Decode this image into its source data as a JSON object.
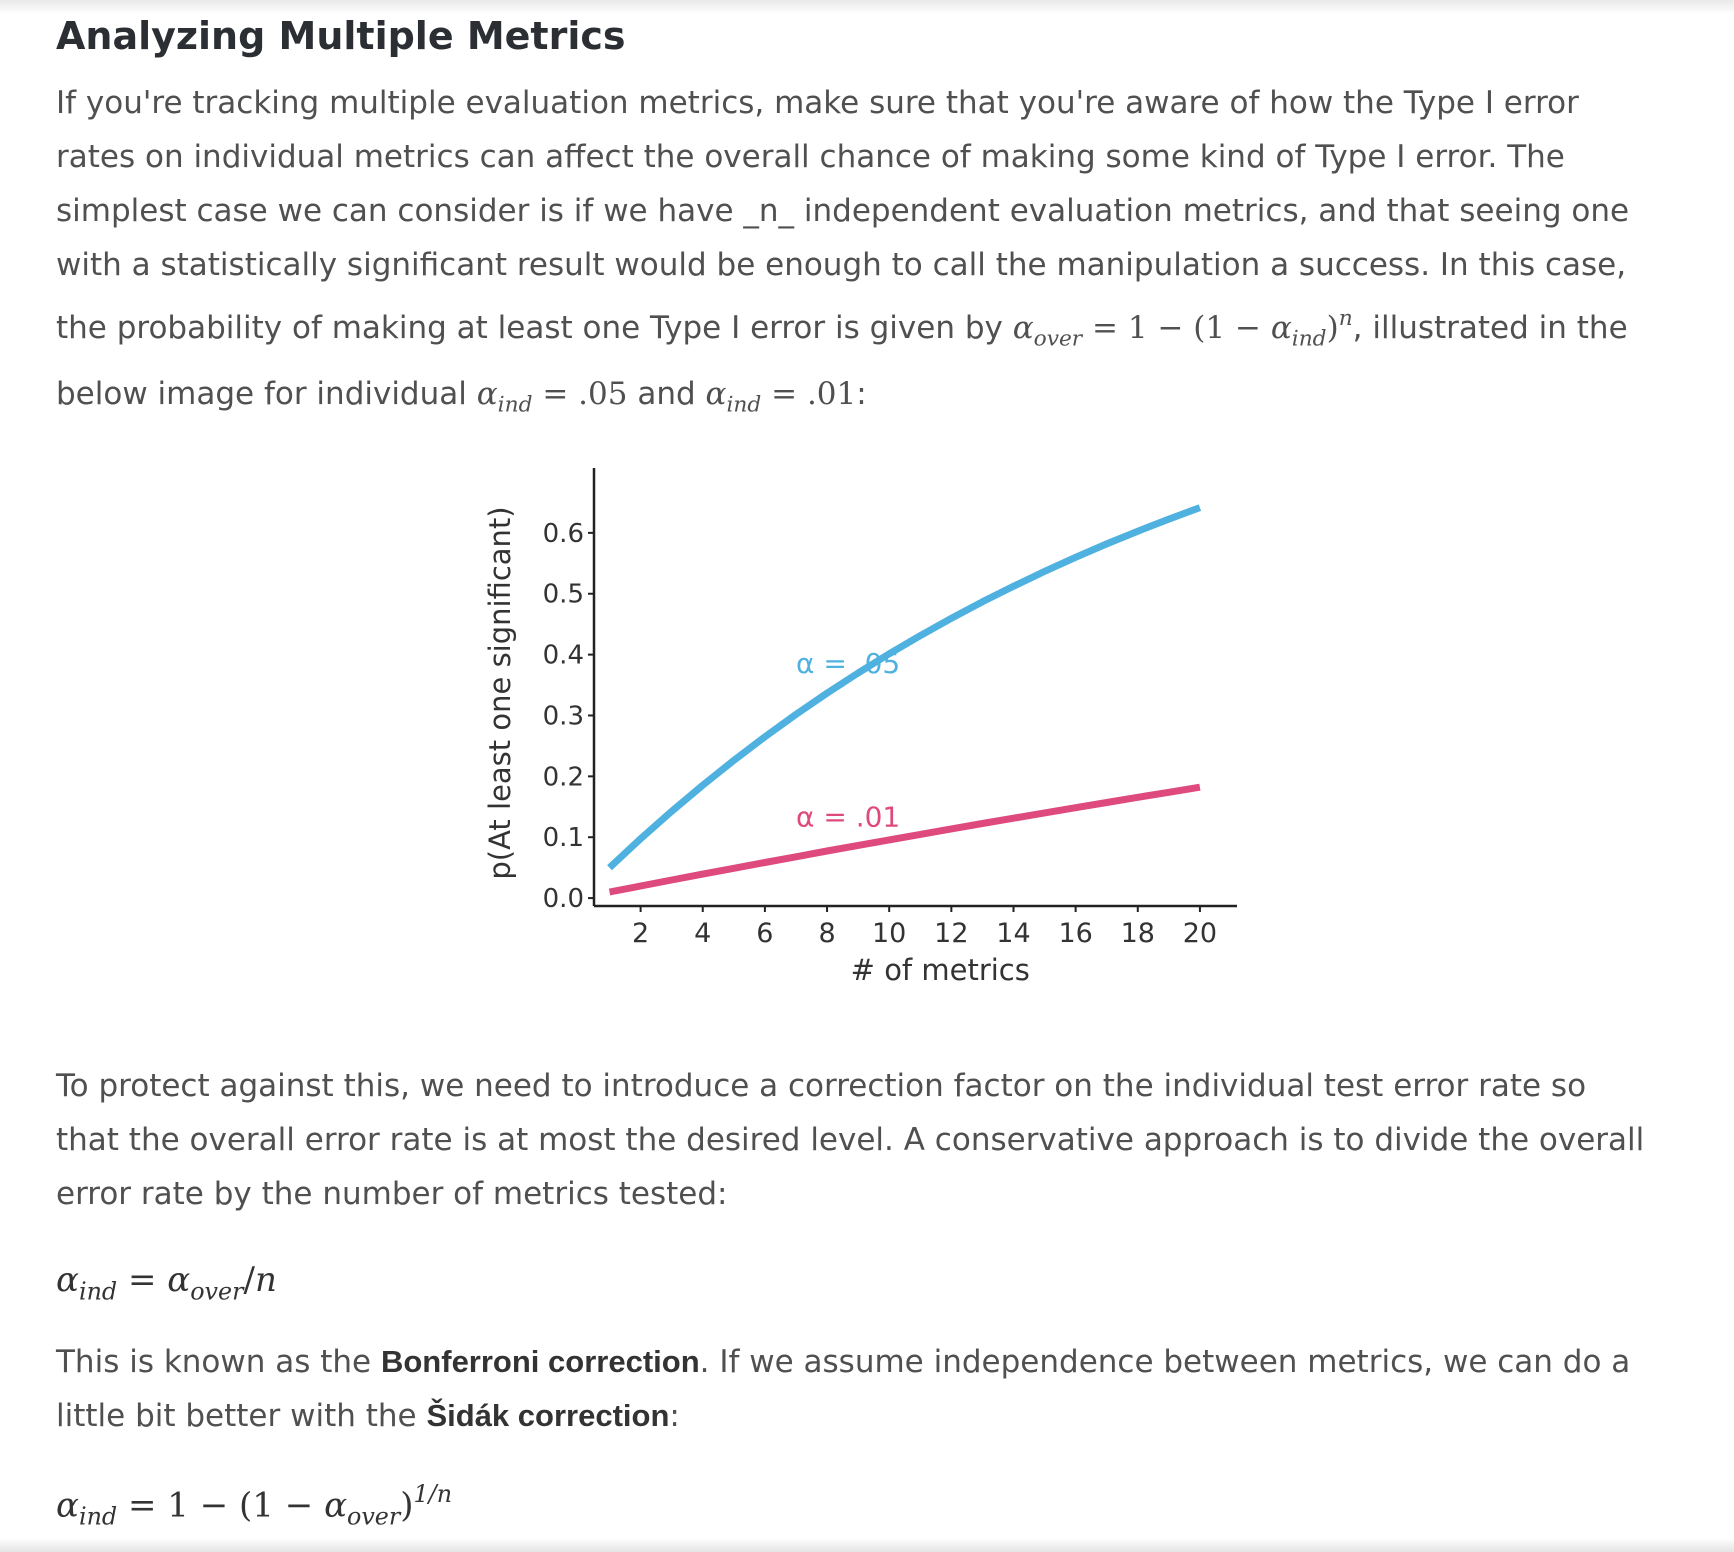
{
  "article": {
    "heading": "Analyzing Multiple Metrics",
    "p1": {
      "text1": "If you're tracking multiple evaluation metrics, make sure that you're aware of how the Type I error rates on individual metrics can affect the overall chance of making some kind of Type I error. The simplest case we can consider is if we have _n_ independent evaluation metrics, and that seeing one with a statistically significant result would be enough to call the manipulation a success. In this case, the probability of making at least one Type I error is given by ",
      "text2": ", illustrated in the below image for individual ",
      "text3": " and ",
      "text4": ":"
    },
    "p2": "To protect against this, we need to introduce a correction factor on the individual test error rate so that the overall error rate is at most the desired level. A conservative approach is to divide the overall error rate by the number of metrics tested:",
    "p3": {
      "text1": "This is known as the ",
      "bold1": "Bonferroni correction",
      "text2": ". If we assume independence between metrics, we can do a little bit better with the ",
      "bold2": "Šidák correction",
      "text3": ":"
    }
  },
  "math": {
    "alpha": "α",
    "over": "over",
    "ind": "ind",
    "n": "n",
    "eq_sign": "=",
    "one": "1",
    "minus": "−",
    "open": "(",
    "close": ")",
    "val05": ".05",
    "val01": ".01",
    "slash": "/",
    "exp": "1/n"
  },
  "chart_data": {
    "type": "line",
    "xlabel": "# of metrics",
    "ylabel": "p(At least one significant)",
    "xlim": [
      0.5,
      21
    ],
    "ylim": [
      -0.013,
      0.7
    ],
    "xticks": [
      2,
      4,
      6,
      8,
      10,
      12,
      14,
      16,
      18,
      20
    ],
    "xtick_labels": [
      "2",
      "4",
      "6",
      "8",
      "10",
      "12",
      "14",
      "16",
      "18",
      "20"
    ],
    "yticks": [
      0.0,
      0.1,
      0.2,
      0.3,
      0.4,
      0.5,
      0.6
    ],
    "ytick_labels": [
      "0.0",
      "0.1",
      "0.2",
      "0.3",
      "0.4",
      "0.5",
      "0.6"
    ],
    "x": [
      1,
      2,
      3,
      4,
      5,
      6,
      7,
      8,
      9,
      10,
      11,
      12,
      13,
      14,
      15,
      16,
      17,
      18,
      19,
      20
    ],
    "series": [
      {
        "name": "α = .05",
        "color": "#4fb1e0",
        "values": [
          0.05,
          0.0975,
          0.1426,
          0.1855,
          0.2262,
          0.2649,
          0.3017,
          0.3366,
          0.3698,
          0.4013,
          0.4312,
          0.4596,
          0.4867,
          0.5123,
          0.5367,
          0.5599,
          0.5819,
          0.6028,
          0.6226,
          0.6415
        ]
      },
      {
        "name": "α = .01",
        "color": "#de4a7e",
        "values": [
          0.01,
          0.0199,
          0.0297,
          0.0394,
          0.049,
          0.0585,
          0.0679,
          0.0773,
          0.0865,
          0.0956,
          0.1047,
          0.1136,
          0.1225,
          0.1313,
          0.1399,
          0.1485,
          0.1571,
          0.1655,
          0.1738,
          0.1821
        ]
      }
    ],
    "annotations": [
      {
        "text": "α = .05",
        "x": 7.0,
        "y": 0.37,
        "color": "#4fb1e0"
      },
      {
        "text": "α = .01",
        "x": 7.0,
        "y": 0.118,
        "color": "#de4a7e"
      }
    ],
    "grid": false
  }
}
